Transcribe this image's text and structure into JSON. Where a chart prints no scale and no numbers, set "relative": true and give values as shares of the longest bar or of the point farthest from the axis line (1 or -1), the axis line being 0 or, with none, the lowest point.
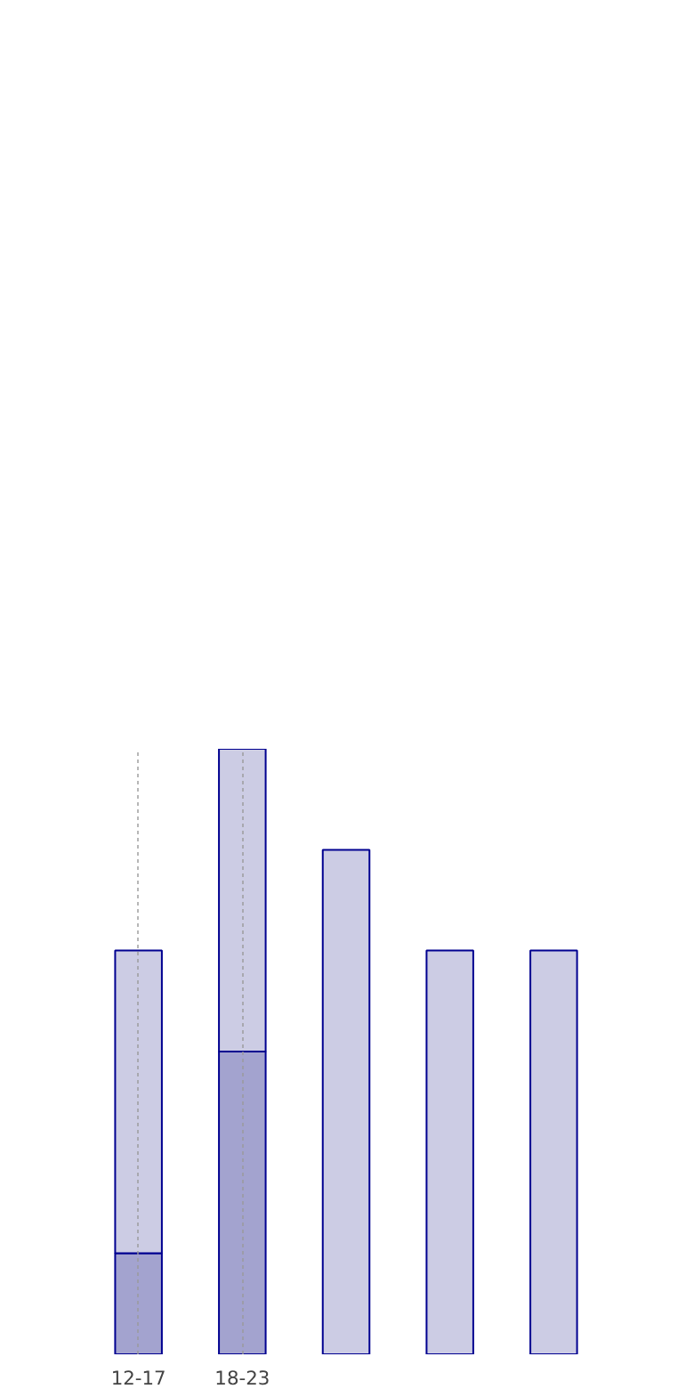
{
  "chart_data": {
    "type": "bar",
    "stacked": true,
    "relative": true,
    "grid": "x",
    "categories": [
      "12-17",
      "18-23",
      null,
      null,
      null
    ],
    "series": [
      {
        "color": "#a3a3cf",
        "values": [
          0.167,
          0.5,
          null,
          null,
          null
        ]
      },
      {
        "color": "#ccccE4",
        "values": [
          0.5,
          0.5,
          0.833,
          0.667,
          0.667
        ]
      }
    ]
  }
}
